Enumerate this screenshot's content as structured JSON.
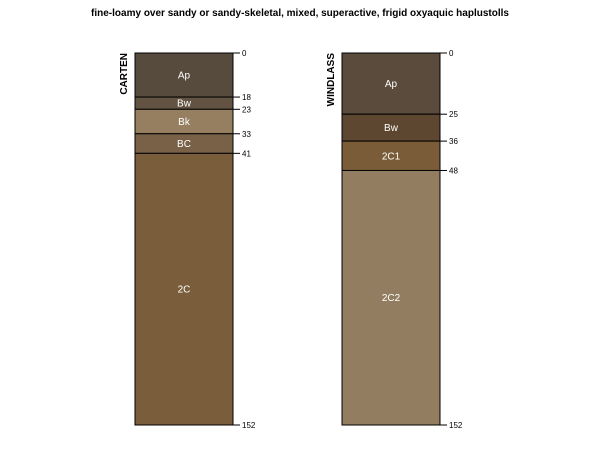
{
  "title": "fine-loamy over sandy or sandy-skeletal, mixed, superactive, frigid oxyaquic haplustolls",
  "depth_axis": {
    "max_depth": 152
  },
  "profiles": [
    {
      "name": "CARTEN",
      "horizons": [
        {
          "name": "Ap",
          "top": 0,
          "bottom": 18,
          "color": "#574B3D"
        },
        {
          "name": "Bw",
          "top": 18,
          "bottom": 23,
          "color": "#625342"
        },
        {
          "name": "Bk",
          "top": 23,
          "bottom": 33,
          "color": "#967F61"
        },
        {
          "name": "BC",
          "top": 33,
          "bottom": 41,
          "color": "#796148"
        },
        {
          "name": "2C",
          "top": 41,
          "bottom": 152,
          "color": "#7A5D3A"
        }
      ],
      "depth_ticks": [
        0,
        18,
        23,
        33,
        41,
        152
      ]
    },
    {
      "name": "WINDLASS",
      "horizons": [
        {
          "name": "Ap",
          "top": 0,
          "bottom": 25,
          "color": "#5B4B3D"
        },
        {
          "name": "Bw",
          "top": 25,
          "bottom": 36,
          "color": "#5D4730"
        },
        {
          "name": "2C1",
          "top": 36,
          "bottom": 48,
          "color": "#7B5C38"
        },
        {
          "name": "2C2",
          "top": 48,
          "bottom": 152,
          "color": "#937D61"
        }
      ],
      "depth_ticks": [
        0,
        25,
        36,
        48,
        152
      ]
    }
  ]
}
